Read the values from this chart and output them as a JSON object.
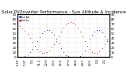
{
  "title": "Solar PV/Inverter Performance - Sun Altitude & Incidence",
  "blue_x": [
    0,
    1,
    2,
    3,
    4,
    5,
    6,
    7,
    8,
    9,
    10,
    11,
    12,
    13,
    14,
    15,
    16,
    17,
    18,
    19,
    20,
    21,
    22,
    23,
    24,
    25,
    26,
    27,
    28,
    29,
    30,
    31,
    32,
    33,
    34,
    35,
    36,
    37,
    38
  ],
  "blue_y": [
    0,
    0,
    0,
    2,
    5,
    10,
    16,
    24,
    33,
    42,
    50,
    55,
    57,
    56,
    52,
    46,
    38,
    28,
    18,
    10,
    4,
    1,
    0,
    0,
    0,
    0,
    2,
    6,
    14,
    24,
    36,
    46,
    54,
    57,
    56,
    52,
    44,
    34,
    22
  ],
  "red_x": [
    0,
    1,
    2,
    3,
    4,
    5,
    6,
    7,
    8,
    9,
    10,
    11,
    12,
    13,
    14,
    15,
    16,
    17,
    18,
    19,
    20,
    21,
    22,
    23,
    24,
    25,
    26,
    27,
    28,
    29,
    30,
    31,
    32,
    33,
    34,
    35,
    36,
    37,
    38
  ],
  "red_y": [
    70,
    65,
    60,
    55,
    48,
    40,
    32,
    24,
    17,
    12,
    9,
    8,
    10,
    14,
    20,
    26,
    34,
    44,
    54,
    62,
    68,
    72,
    74,
    72,
    68,
    62,
    54,
    44,
    34,
    24,
    16,
    10,
    8,
    9,
    12,
    18,
    26,
    36,
    48
  ],
  "xlim": [
    0,
    38
  ],
  "ylim_left": [
    0,
    90
  ],
  "ylim_right": [
    0,
    90
  ],
  "xlabel_ticks": [
    0,
    3,
    6,
    9,
    12,
    15,
    18,
    21,
    24,
    27,
    30,
    33,
    36
  ],
  "xlabel_labels": [
    "5:19",
    "7:37",
    "9:1",
    "11:1",
    "12:0",
    "13:1",
    "15:3",
    "17:0",
    "18:4",
    "20:7",
    "22:5",
    "0:2",
    "2:1"
  ],
  "ylabel_left_ticks": [
    0,
    10,
    20,
    30,
    40,
    50,
    60,
    70,
    80,
    90
  ],
  "ylabel_right_ticks": [
    0,
    10,
    20,
    30,
    40,
    50,
    60,
    70,
    80,
    90
  ],
  "blue_color": "#0000dd",
  "red_color": "#dd0000",
  "bg_color": "#ffffff",
  "grid_color": "#aaaaaa",
  "title_fontsize": 4.0,
  "tick_fontsize": 2.8,
  "marker_size": 1.5,
  "legend_blue": "Sun Alt",
  "legend_red": "Sun Inc"
}
